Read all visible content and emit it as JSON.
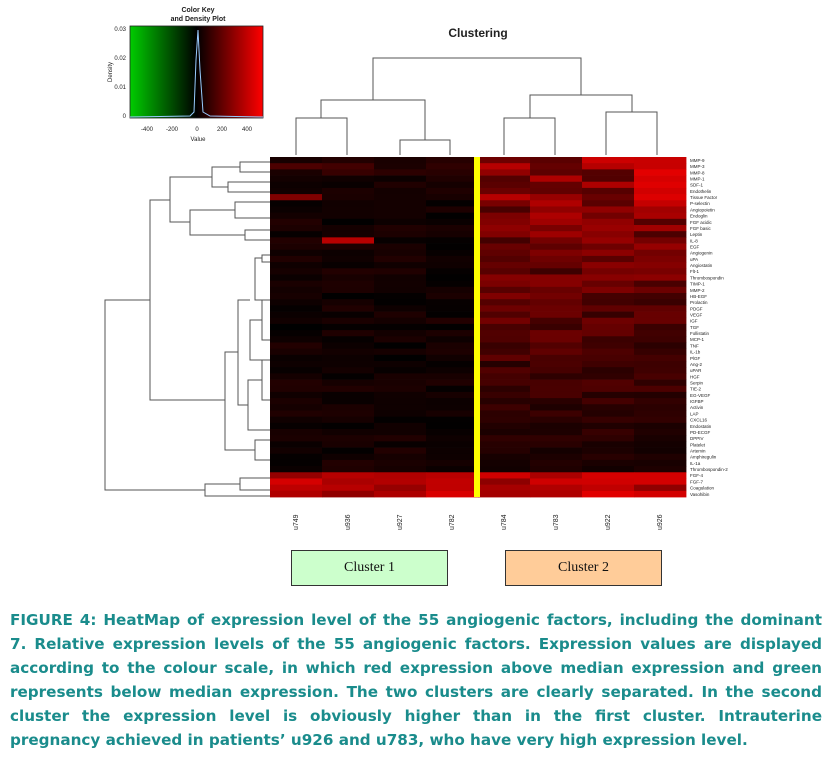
{
  "figure": {
    "title": "Clustering",
    "color_key": {
      "title_line1": "Color Key",
      "title_line2": "and Density Plot",
      "x_label": "Value",
      "x_ticks": [
        "-400",
        "-200",
        "0",
        "200",
        "400"
      ],
      "y_label": "Density",
      "y_ticks": [
        "0",
        "0.01",
        "0.02",
        "0.03"
      ],
      "low_color": "#00cc00",
      "mid_color": "#000000",
      "high_color": "#ff0000"
    },
    "samples": [
      "u749",
      "u936",
      "u927",
      "u782",
      "u784",
      "u783",
      "u922",
      "u926"
    ],
    "separator_color": "#ffff00",
    "factors": [
      "MMP-9",
      "MMP-3",
      "MMP-8",
      "MMP-1",
      "SDF-1",
      "Endothelin",
      "Tissue Factor",
      "P-selectin",
      "Angiopoietin",
      "Endoglin",
      "FGF acidic",
      "FGF basic",
      "Leptin",
      "IL-8",
      "EGF",
      "Angiogenin",
      "uPA",
      "Angiostatin",
      "Flt-1",
      "Thrombospondin",
      "TIMP-1",
      "MMP-2",
      "HB-EGF",
      "Prolactin",
      "PDGF",
      "VEGF",
      "IGF",
      "TGF",
      "Follistatin",
      "MCP-1",
      "TNF",
      "IL-1b",
      "PlGF",
      "Ang-2",
      "uPAR",
      "HGF",
      "Serpin",
      "TIE-2",
      "EG-VEGF",
      "IGFBP",
      "Activin",
      "LAP",
      "CXCL16",
      "Endostatin",
      "PD-ECGF",
      "DPPIV",
      "Platelet",
      "Artemin",
      "Amphiregulin",
      "IL-1a",
      "Thrombospondin-2",
      "FGF-4",
      "FGF-7",
      "Coagulation",
      "Vasohibin"
    ],
    "clusters": [
      {
        "label": "Cluster 1"
      },
      {
        "label": "Cluster 2"
      }
    ]
  },
  "caption": {
    "text": "FIGURE 4: HeatMap of expression level of the 55 angiogenic factors, including the dominant 7. Relative expression levels of the 55 angiogenic factors. Expression values are displayed according to the colour scale, in which red expression above median expression and green represents below median expression. The two clusters are clearly separated. In the second cluster the expression level is obviously higher than in the first cluster. Intrauterine pregnancy achieved in patients’ u926 and u783, who have very high expression level."
  }
}
